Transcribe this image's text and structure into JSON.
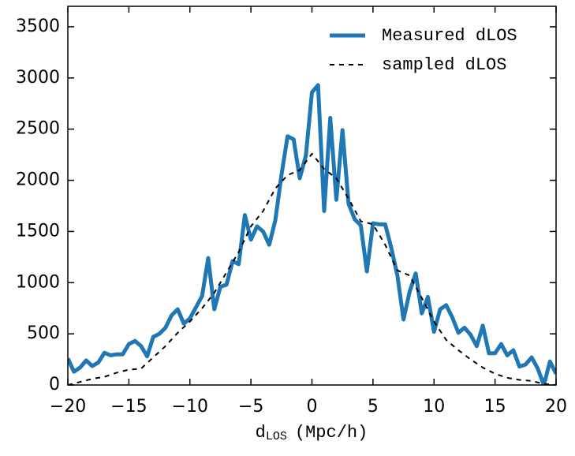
{
  "chart_data": {
    "type": "line",
    "xlabel": "d",
    "xlabel_sub": "LOS",
    "xlabel_unit": "(Mpc/h)",
    "xlim": [
      -20,
      20
    ],
    "xticks": [
      {
        "value": -20,
        "label": "−20"
      },
      {
        "value": -15,
        "label": "−15"
      },
      {
        "value": -10,
        "label": "−10"
      },
      {
        "value": -5,
        "label": "−5"
      },
      0,
      5,
      10,
      15,
      20
    ],
    "ylim": [
      0,
      3700
    ],
    "yticks": [
      0,
      500,
      1000,
      1500,
      2000,
      2500,
      3000,
      3500
    ],
    "legend": "upper-right",
    "series": [
      {
        "name": "Measured dLOS",
        "color": "#1f77b4",
        "linestyle": "solid",
        "x": [
          -20,
          -19.5,
          -19,
          -18.5,
          -18,
          -17.5,
          -17,
          -16.5,
          -16,
          -15.5,
          -15,
          -14.5,
          -14,
          -13.5,
          -13,
          -12.5,
          -12,
          -11.5,
          -11,
          -10.5,
          -10,
          -9.5,
          -9,
          -8.5,
          -8,
          -7.5,
          -7,
          -6.5,
          -6,
          -5.5,
          -5,
          -4.5,
          -4,
          -3.5,
          -3,
          -2.5,
          -2,
          -1.5,
          -1,
          -0.5,
          0,
          0.5,
          1,
          1.5,
          2,
          2.5,
          3,
          3.5,
          4,
          4.5,
          5,
          5.5,
          6,
          6.5,
          7,
          7.5,
          8,
          8.5,
          9,
          9.5,
          10,
          10.5,
          11,
          11.5,
          12,
          12.5,
          13,
          13.5,
          14,
          14.5,
          15,
          15.5,
          16,
          16.5,
          17,
          17.5,
          18,
          18.5,
          19,
          19.5,
          20
        ],
        "values": [
          260,
          130,
          170,
          240,
          185,
          220,
          315,
          290,
          300,
          300,
          400,
          430,
          380,
          280,
          470,
          500,
          560,
          680,
          740,
          600,
          650,
          760,
          870,
          1240,
          740,
          960,
          980,
          1210,
          1180,
          1660,
          1420,
          1550,
          1500,
          1370,
          1610,
          2050,
          2430,
          2400,
          2020,
          2240,
          2860,
          2930,
          1700,
          2610,
          1810,
          2490,
          1770,
          1620,
          1560,
          1110,
          1580,
          1570,
          1570,
          1340,
          1070,
          640,
          910,
          1090,
          700,
          860,
          520,
          740,
          780,
          660,
          510,
          560,
          490,
          380,
          580,
          310,
          310,
          400,
          290,
          340,
          180,
          200,
          270,
          160,
          0,
          230,
          110
        ]
      },
      {
        "name": "sampled dLOS",
        "color": "#000000",
        "linestyle": "dashed",
        "x": [
          -20,
          -19,
          -18,
          -17,
          -16,
          -15,
          -14,
          -13,
          -12,
          -11,
          -10,
          -9,
          -8,
          -7,
          -6,
          -5,
          -4,
          -3,
          -2,
          -1,
          0,
          1,
          2,
          3,
          4,
          5,
          6,
          7,
          8,
          9,
          10,
          11,
          12,
          13,
          14,
          15,
          16,
          17,
          18,
          19,
          20
        ],
        "values": [
          0,
          30,
          60,
          80,
          120,
          150,
          160,
          270,
          380,
          510,
          620,
          750,
          900,
          1100,
          1300,
          1550,
          1700,
          1920,
          2050,
          2100,
          2260,
          2110,
          2020,
          1820,
          1600,
          1570,
          1370,
          1120,
          1070,
          850,
          620,
          440,
          340,
          250,
          170,
          110,
          70,
          50,
          40,
          10,
          0
        ]
      }
    ]
  }
}
